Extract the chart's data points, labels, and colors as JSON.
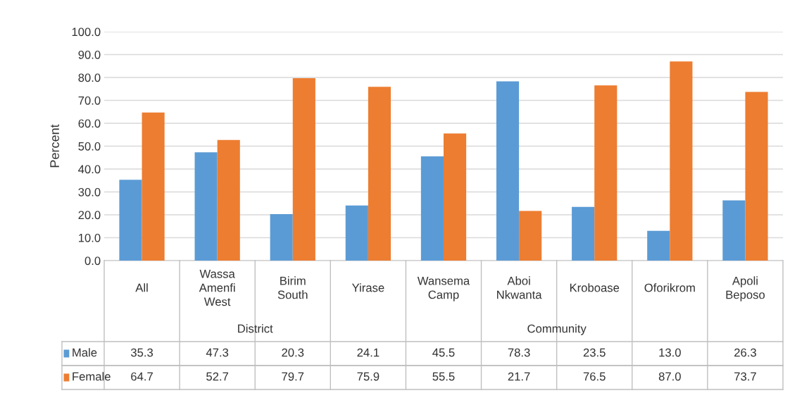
{
  "chart_data": {
    "type": "bar",
    "ylabel": "Percent",
    "categories": [
      "All",
      "Wassa\nAmenfi\nWest",
      "Birim\nSouth",
      "Yirase",
      "Wansema\nCamp",
      "Aboi\nNkwanta",
      "Kroboase",
      "Oforikrom",
      "Apoli\nBeposo"
    ],
    "series": [
      {
        "name": "Male",
        "color": "#5b9bd5",
        "values": [
          35.3,
          47.3,
          20.3,
          24.1,
          45.5,
          78.3,
          23.5,
          13.0,
          26.3
        ],
        "value_labels": [
          "35.3",
          "47.3",
          "20.3",
          "24.1",
          "45.5",
          "78.3",
          "23.5",
          "13.0",
          "26.3"
        ]
      },
      {
        "name": "Female",
        "color": "#ed7d31",
        "values": [
          64.7,
          52.7,
          79.7,
          75.9,
          55.5,
          21.7,
          76.5,
          87.0,
          73.7
        ],
        "value_labels": [
          "64.7",
          "52.7",
          "79.7",
          "75.9",
          "55.5",
          "21.7",
          "76.5",
          "87.0",
          "73.7"
        ]
      }
    ],
    "ylim": [
      0,
      100
    ],
    "yticks": [
      {
        "value": 0,
        "label": "0.0"
      },
      {
        "value": 10,
        "label": "10.0"
      },
      {
        "value": 20,
        "label": "20.0"
      },
      {
        "value": 30,
        "label": "30.0"
      },
      {
        "value": 40,
        "label": "40.0"
      },
      {
        "value": 50,
        "label": "50.0"
      },
      {
        "value": 60,
        "label": "60.0"
      },
      {
        "value": 70,
        "label": "70.0"
      },
      {
        "value": 80,
        "label": "80.0"
      },
      {
        "value": 90,
        "label": "90.0"
      },
      {
        "value": 100,
        "label": "100.0"
      }
    ],
    "grid": "y",
    "legend": "bottom",
    "annotations": [
      "District",
      "Community"
    ]
  }
}
